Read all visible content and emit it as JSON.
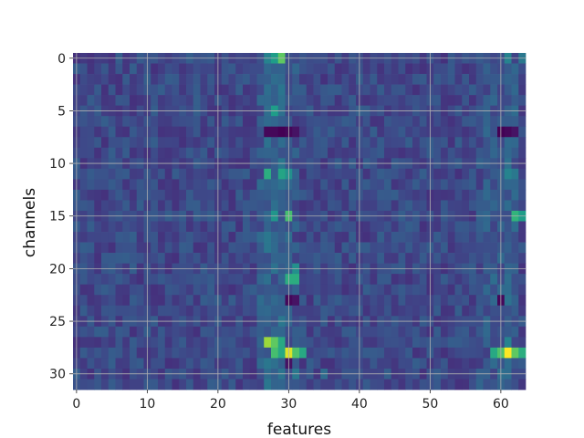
{
  "chart_data": {
    "type": "heatmap",
    "xlabel": "features",
    "ylabel": "channels",
    "colormap": "viridis",
    "grid": true,
    "grid_color": "#b0b0b0",
    "n_cols": 64,
    "n_rows": 32,
    "value_range": [
      0,
      1
    ],
    "xlim": [
      -0.5,
      63.5
    ],
    "ylim": [
      31.5,
      -0.5
    ],
    "x_ticks": [
      0,
      10,
      20,
      30,
      40,
      50,
      60
    ],
    "x_tick_labels": [
      "0",
      "10",
      "20",
      "30",
      "40",
      "50",
      "60"
    ],
    "y_ticks": [
      0,
      5,
      10,
      15,
      20,
      25,
      30
    ],
    "y_tick_labels": [
      "0",
      "5",
      "10",
      "15",
      "20",
      "25",
      "30"
    ],
    "baseline_value": 0.22,
    "column_offsets": {
      "26": 0.05,
      "27": 0.1,
      "28": 0.08,
      "29": 0.1,
      "30": 0.06,
      "31": 0.03,
      "57": 0.03,
      "58": 0.04,
      "59": 0.06,
      "60": 0.06,
      "61": 0.08,
      "62": 0.06
    },
    "highlights": [
      {
        "row": 0,
        "col": 28,
        "value": 0.55
      },
      {
        "row": 0,
        "col": 29,
        "value": 0.75
      },
      {
        "row": 0,
        "col": 27,
        "value": 0.45
      },
      {
        "row": 0,
        "col": 61,
        "value": 0.45
      },
      {
        "row": 0,
        "col": 63,
        "value": 0.4
      },
      {
        "row": 5,
        "col": 28,
        "value": 0.55
      },
      {
        "row": 7,
        "col": 27,
        "value": 0.02
      },
      {
        "row": 7,
        "col": 28,
        "value": 0.02
      },
      {
        "row": 7,
        "col": 29,
        "value": 0.0
      },
      {
        "row": 7,
        "col": 30,
        "value": 0.02
      },
      {
        "row": 7,
        "col": 31,
        "value": 0.05
      },
      {
        "row": 7,
        "col": 60,
        "value": 0.0
      },
      {
        "row": 7,
        "col": 61,
        "value": 0.02
      },
      {
        "row": 7,
        "col": 62,
        "value": 0.05
      },
      {
        "row": 11,
        "col": 27,
        "value": 0.62
      },
      {
        "row": 11,
        "col": 29,
        "value": 0.58
      },
      {
        "row": 11,
        "col": 30,
        "value": 0.5
      },
      {
        "row": 11,
        "col": 61,
        "value": 0.45
      },
      {
        "row": 11,
        "col": 62,
        "value": 0.4
      },
      {
        "row": 15,
        "col": 28,
        "value": 0.52
      },
      {
        "row": 15,
        "col": 30,
        "value": 0.7
      },
      {
        "row": 15,
        "col": 62,
        "value": 0.65
      },
      {
        "row": 15,
        "col": 63,
        "value": 0.55
      },
      {
        "row": 21,
        "col": 30,
        "value": 0.62
      },
      {
        "row": 21,
        "col": 31,
        "value": 0.62
      },
      {
        "row": 20,
        "col": 31,
        "value": 0.5
      },
      {
        "row": 23,
        "col": 30,
        "value": 0.02
      },
      {
        "row": 23,
        "col": 31,
        "value": 0.05
      },
      {
        "row": 23,
        "col": 60,
        "value": 0.02
      },
      {
        "row": 27,
        "col": 27,
        "value": 0.85
      },
      {
        "row": 27,
        "col": 28,
        "value": 0.75
      },
      {
        "row": 27,
        "col": 29,
        "value": 0.6
      },
      {
        "row": 28,
        "col": 28,
        "value": 0.7
      },
      {
        "row": 28,
        "col": 29,
        "value": 0.6
      },
      {
        "row": 28,
        "col": 30,
        "value": 0.95
      },
      {
        "row": 28,
        "col": 31,
        "value": 0.72
      },
      {
        "row": 28,
        "col": 32,
        "value": 0.6
      },
      {
        "row": 28,
        "col": 59,
        "value": 0.6
      },
      {
        "row": 28,
        "col": 60,
        "value": 0.72
      },
      {
        "row": 28,
        "col": 61,
        "value": 1.0
      },
      {
        "row": 28,
        "col": 62,
        "value": 0.75
      },
      {
        "row": 28,
        "col": 63,
        "value": 0.62
      },
      {
        "row": 27,
        "col": 61,
        "value": 0.45
      },
      {
        "row": 29,
        "col": 30,
        "value": 0.05
      },
      {
        "row": 30,
        "col": 31,
        "value": 0.4
      },
      {
        "row": 30,
        "col": 35,
        "value": 0.35
      }
    ]
  }
}
